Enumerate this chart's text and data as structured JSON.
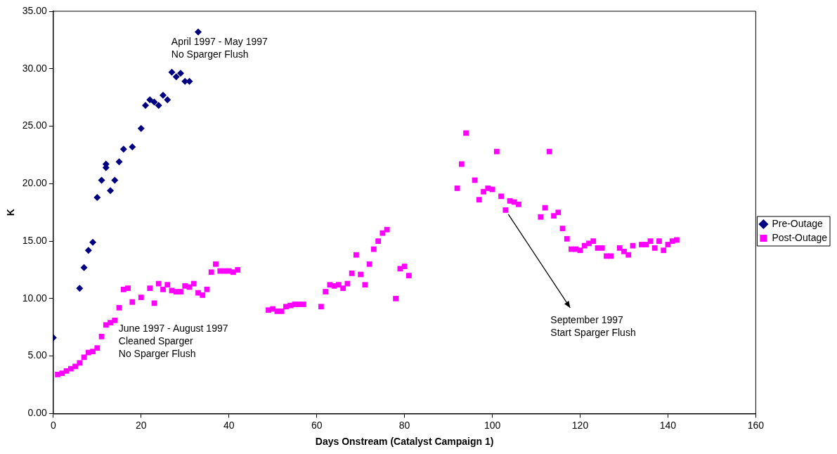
{
  "chart_data": {
    "type": "scatter",
    "xlabel": "Days Onstream (Catalyst Campaign 1)",
    "ylabel": "K",
    "xlim": [
      0,
      160
    ],
    "xticks": [
      0,
      20,
      40,
      60,
      80,
      100,
      120,
      140,
      160
    ],
    "ylim": [
      0,
      35
    ],
    "yticks": [
      {
        "value": 0,
        "label": "0.00"
      },
      {
        "value": 5,
        "label": "5.00"
      },
      {
        "value": 10,
        "label": "10.00"
      },
      {
        "value": 15,
        "label": "15.00"
      },
      {
        "value": 20,
        "label": "20.00"
      },
      {
        "value": 25,
        "label": "25.00"
      },
      {
        "value": 30,
        "label": "30.00"
      },
      {
        "value": 35,
        "label": "35.00"
      }
    ],
    "grid": false,
    "legend": "right",
    "series": [
      {
        "name": "Pre-Outage",
        "color": "#000080",
        "marker": "diamond",
        "x": [
          0,
          6,
          7,
          8,
          9,
          10,
          11,
          12,
          12,
          13,
          14,
          15,
          16,
          18,
          20,
          21,
          22,
          23,
          24,
          25,
          26,
          27,
          28,
          29,
          30,
          31,
          33
        ],
        "values": [
          6.6,
          10.9,
          12.7,
          14.2,
          14.9,
          18.8,
          20.3,
          21.7,
          21.4,
          19.4,
          20.3,
          21.9,
          23.0,
          23.2,
          24.8,
          26.8,
          27.3,
          27.1,
          26.8,
          27.7,
          27.3,
          29.7,
          29.3,
          29.6,
          28.9,
          28.9,
          33.2
        ]
      },
      {
        "name": "Post-Outage",
        "color": "#ff00ff",
        "marker": "square",
        "x": [
          1,
          2,
          3,
          4,
          5,
          6,
          7,
          8,
          9,
          10,
          11,
          12,
          13,
          14,
          15,
          16,
          17,
          18,
          20,
          22,
          23,
          24,
          25,
          26,
          27,
          28,
          29,
          30,
          31,
          32,
          33,
          34,
          35,
          36,
          37,
          38,
          39,
          40,
          41,
          42,
          49,
          50,
          51,
          52,
          53,
          54,
          55,
          56,
          57,
          61,
          62,
          63,
          64,
          65,
          66,
          67,
          68,
          69,
          70,
          71,
          72,
          73,
          74,
          75,
          76,
          78,
          79,
          80,
          81,
          92,
          93,
          94,
          96,
          97,
          98,
          99,
          100,
          101,
          102,
          103,
          104,
          105,
          106,
          111,
          112,
          113,
          114,
          115,
          116,
          117,
          118,
          119,
          120,
          121,
          122,
          123,
          124,
          125,
          126,
          127,
          129,
          130,
          131,
          132,
          134,
          135,
          136,
          137,
          138,
          139,
          140,
          141,
          142
        ],
        "values": [
          3.4,
          3.5,
          3.7,
          3.9,
          4.1,
          4.4,
          4.9,
          5.3,
          5.4,
          5.7,
          6.7,
          7.7,
          7.9,
          8.1,
          9.2,
          10.8,
          10.9,
          9.7,
          10.1,
          10.9,
          9.6,
          11.3,
          10.8,
          11.2,
          10.7,
          10.6,
          10.6,
          11.1,
          11.0,
          11.3,
          10.5,
          10.3,
          10.8,
          12.3,
          13.0,
          12.4,
          12.4,
          12.4,
          12.3,
          12.5,
          9.0,
          9.1,
          8.9,
          8.9,
          9.3,
          9.4,
          9.5,
          9.5,
          9.5,
          9.3,
          10.6,
          11.2,
          11.1,
          11.2,
          10.9,
          11.3,
          12.2,
          13.8,
          12.1,
          11.2,
          13.0,
          14.3,
          15.0,
          15.7,
          16.0,
          10.0,
          12.6,
          12.8,
          12.0,
          19.6,
          21.7,
          24.4,
          20.3,
          18.6,
          19.3,
          19.6,
          19.5,
          22.8,
          18.9,
          17.7,
          18.5,
          18.4,
          18.2,
          17.1,
          17.9,
          22.8,
          17.2,
          17.5,
          16.1,
          15.2,
          14.3,
          14.3,
          14.2,
          14.6,
          14.8,
          15.0,
          14.4,
          14.4,
          13.7,
          13.7,
          14.4,
          14.1,
          13.8,
          14.6,
          14.7,
          14.7,
          15.0,
          14.4,
          15.0,
          14.2,
          14.7,
          15.0,
          15.1
        ]
      }
    ],
    "annotations": [
      "April 1997 - May 1997\nNo Sparger Flush",
      "June 1997 - August 1997\nCleaned Sparger\nNo Sparger Flush",
      {
        "text": "September 1997\nStart Sparger Flush",
        "x": 103,
        "y": 17.7
      }
    ]
  }
}
